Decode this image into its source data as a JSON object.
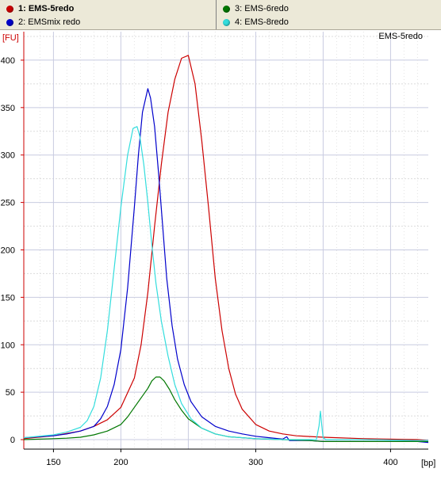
{
  "legend": {
    "items": [
      {
        "label": "1: EMS-5redo",
        "color": "#cc0000",
        "selected": true
      },
      {
        "label": "2: EMSmix redo",
        "color": "#0000cc",
        "selected": false
      },
      {
        "label": "3: EMS-6redo",
        "color": "#007700",
        "selected": false
      },
      {
        "label": "4: EMS-8redo",
        "color": "#33dddd",
        "selected": false
      }
    ]
  },
  "plot": {
    "sample_title": "EMS-5redo",
    "y_unit": "[FU]",
    "x_unit": "[bp]"
  },
  "chart_data": {
    "type": "line",
    "title": "EMS-5redo",
    "xlabel": "[bp]",
    "ylabel": "[FU]",
    "xlim": [
      128,
      428
    ],
    "ylim": [
      -10,
      430
    ],
    "x_ticks": [
      150,
      200,
      300,
      400
    ],
    "y_ticks": [
      0,
      50,
      100,
      150,
      200,
      250,
      300,
      350,
      400
    ],
    "grid": true,
    "series": [
      {
        "name": "1: EMS-5redo",
        "color": "#cc0000",
        "points": [
          [
            128,
            1
          ],
          [
            150,
            4
          ],
          [
            170,
            9
          ],
          [
            180,
            14
          ],
          [
            190,
            21
          ],
          [
            200,
            34
          ],
          [
            210,
            65
          ],
          [
            215,
            100
          ],
          [
            220,
            155
          ],
          [
            225,
            225
          ],
          [
            230,
            290
          ],
          [
            235,
            345
          ],
          [
            240,
            380
          ],
          [
            245,
            402
          ],
          [
            250,
            405
          ],
          [
            255,
            375
          ],
          [
            260,
            315
          ],
          [
            265,
            245
          ],
          [
            270,
            170
          ],
          [
            275,
            115
          ],
          [
            280,
            75
          ],
          [
            285,
            48
          ],
          [
            290,
            32
          ],
          [
            300,
            16
          ],
          [
            310,
            9
          ],
          [
            320,
            6
          ],
          [
            330,
            4
          ],
          [
            350,
            2.5
          ],
          [
            380,
            1
          ],
          [
            420,
            0
          ],
          [
            428,
            -1
          ]
        ]
      },
      {
        "name": "2: EMSmix redo",
        "color": "#0000cc",
        "points": [
          [
            128,
            2
          ],
          [
            150,
            4
          ],
          [
            160,
            6
          ],
          [
            170,
            9
          ],
          [
            180,
            14
          ],
          [
            185,
            22
          ],
          [
            190,
            35
          ],
          [
            195,
            58
          ],
          [
            200,
            95
          ],
          [
            205,
            160
          ],
          [
            210,
            245
          ],
          [
            213,
            300
          ],
          [
            216,
            345
          ],
          [
            220,
            370
          ],
          [
            222,
            360
          ],
          [
            225,
            330
          ],
          [
            228,
            280
          ],
          [
            231,
            225
          ],
          [
            234,
            170
          ],
          [
            238,
            120
          ],
          [
            242,
            85
          ],
          [
            247,
            58
          ],
          [
            252,
            40
          ],
          [
            260,
            24
          ],
          [
            270,
            14
          ],
          [
            280,
            9
          ],
          [
            290,
            6
          ],
          [
            300,
            3.5
          ],
          [
            310,
            2
          ],
          [
            320,
            0.5
          ],
          [
            323,
            3
          ],
          [
            325,
            -1
          ],
          [
            340,
            -1
          ],
          [
            350,
            -2
          ],
          [
            380,
            -2
          ],
          [
            420,
            -2
          ],
          [
            428,
            -3
          ]
        ]
      },
      {
        "name": "3: EMS-6redo",
        "color": "#007700",
        "points": [
          [
            128,
            0
          ],
          [
            150,
            1
          ],
          [
            160,
            1.5
          ],
          [
            170,
            2.5
          ],
          [
            180,
            5
          ],
          [
            190,
            9
          ],
          [
            200,
            16
          ],
          [
            205,
            24
          ],
          [
            210,
            34
          ],
          [
            215,
            44
          ],
          [
            220,
            54
          ],
          [
            223,
            62
          ],
          [
            226,
            66
          ],
          [
            229,
            66
          ],
          [
            232,
            62
          ],
          [
            236,
            53
          ],
          [
            240,
            42
          ],
          [
            245,
            31
          ],
          [
            250,
            22
          ],
          [
            260,
            12
          ],
          [
            270,
            6
          ],
          [
            280,
            3
          ],
          [
            300,
            1
          ],
          [
            320,
            0
          ],
          [
            340,
            -1
          ],
          [
            350,
            -2
          ],
          [
            380,
            -2
          ],
          [
            420,
            -2
          ],
          [
            428,
            -2
          ]
        ]
      },
      {
        "name": "4: EMS-8redo",
        "color": "#33dddd",
        "points": [
          [
            128,
            2
          ],
          [
            150,
            5
          ],
          [
            160,
            8
          ],
          [
            170,
            13
          ],
          [
            175,
            20
          ],
          [
            180,
            35
          ],
          [
            185,
            65
          ],
          [
            190,
            115
          ],
          [
            195,
            180
          ],
          [
            200,
            245
          ],
          [
            205,
            300
          ],
          [
            209,
            328
          ],
          [
            212,
            330
          ],
          [
            214,
            320
          ],
          [
            217,
            290
          ],
          [
            220,
            250
          ],
          [
            223,
            205
          ],
          [
            226,
            165
          ],
          [
            230,
            125
          ],
          [
            235,
            88
          ],
          [
            240,
            58
          ],
          [
            245,
            38
          ],
          [
            252,
            22
          ],
          [
            260,
            12
          ],
          [
            270,
            6
          ],
          [
            280,
            3
          ],
          [
            300,
            1
          ],
          [
            320,
            0
          ],
          [
            340,
            0
          ],
          [
            345,
            0
          ],
          [
            347,
            15
          ],
          [
            348,
            30
          ],
          [
            349,
            15
          ],
          [
            350,
            2
          ],
          [
            352,
            0
          ],
          [
            380,
            0
          ],
          [
            420,
            -1
          ],
          [
            428,
            -1
          ]
        ]
      }
    ]
  }
}
